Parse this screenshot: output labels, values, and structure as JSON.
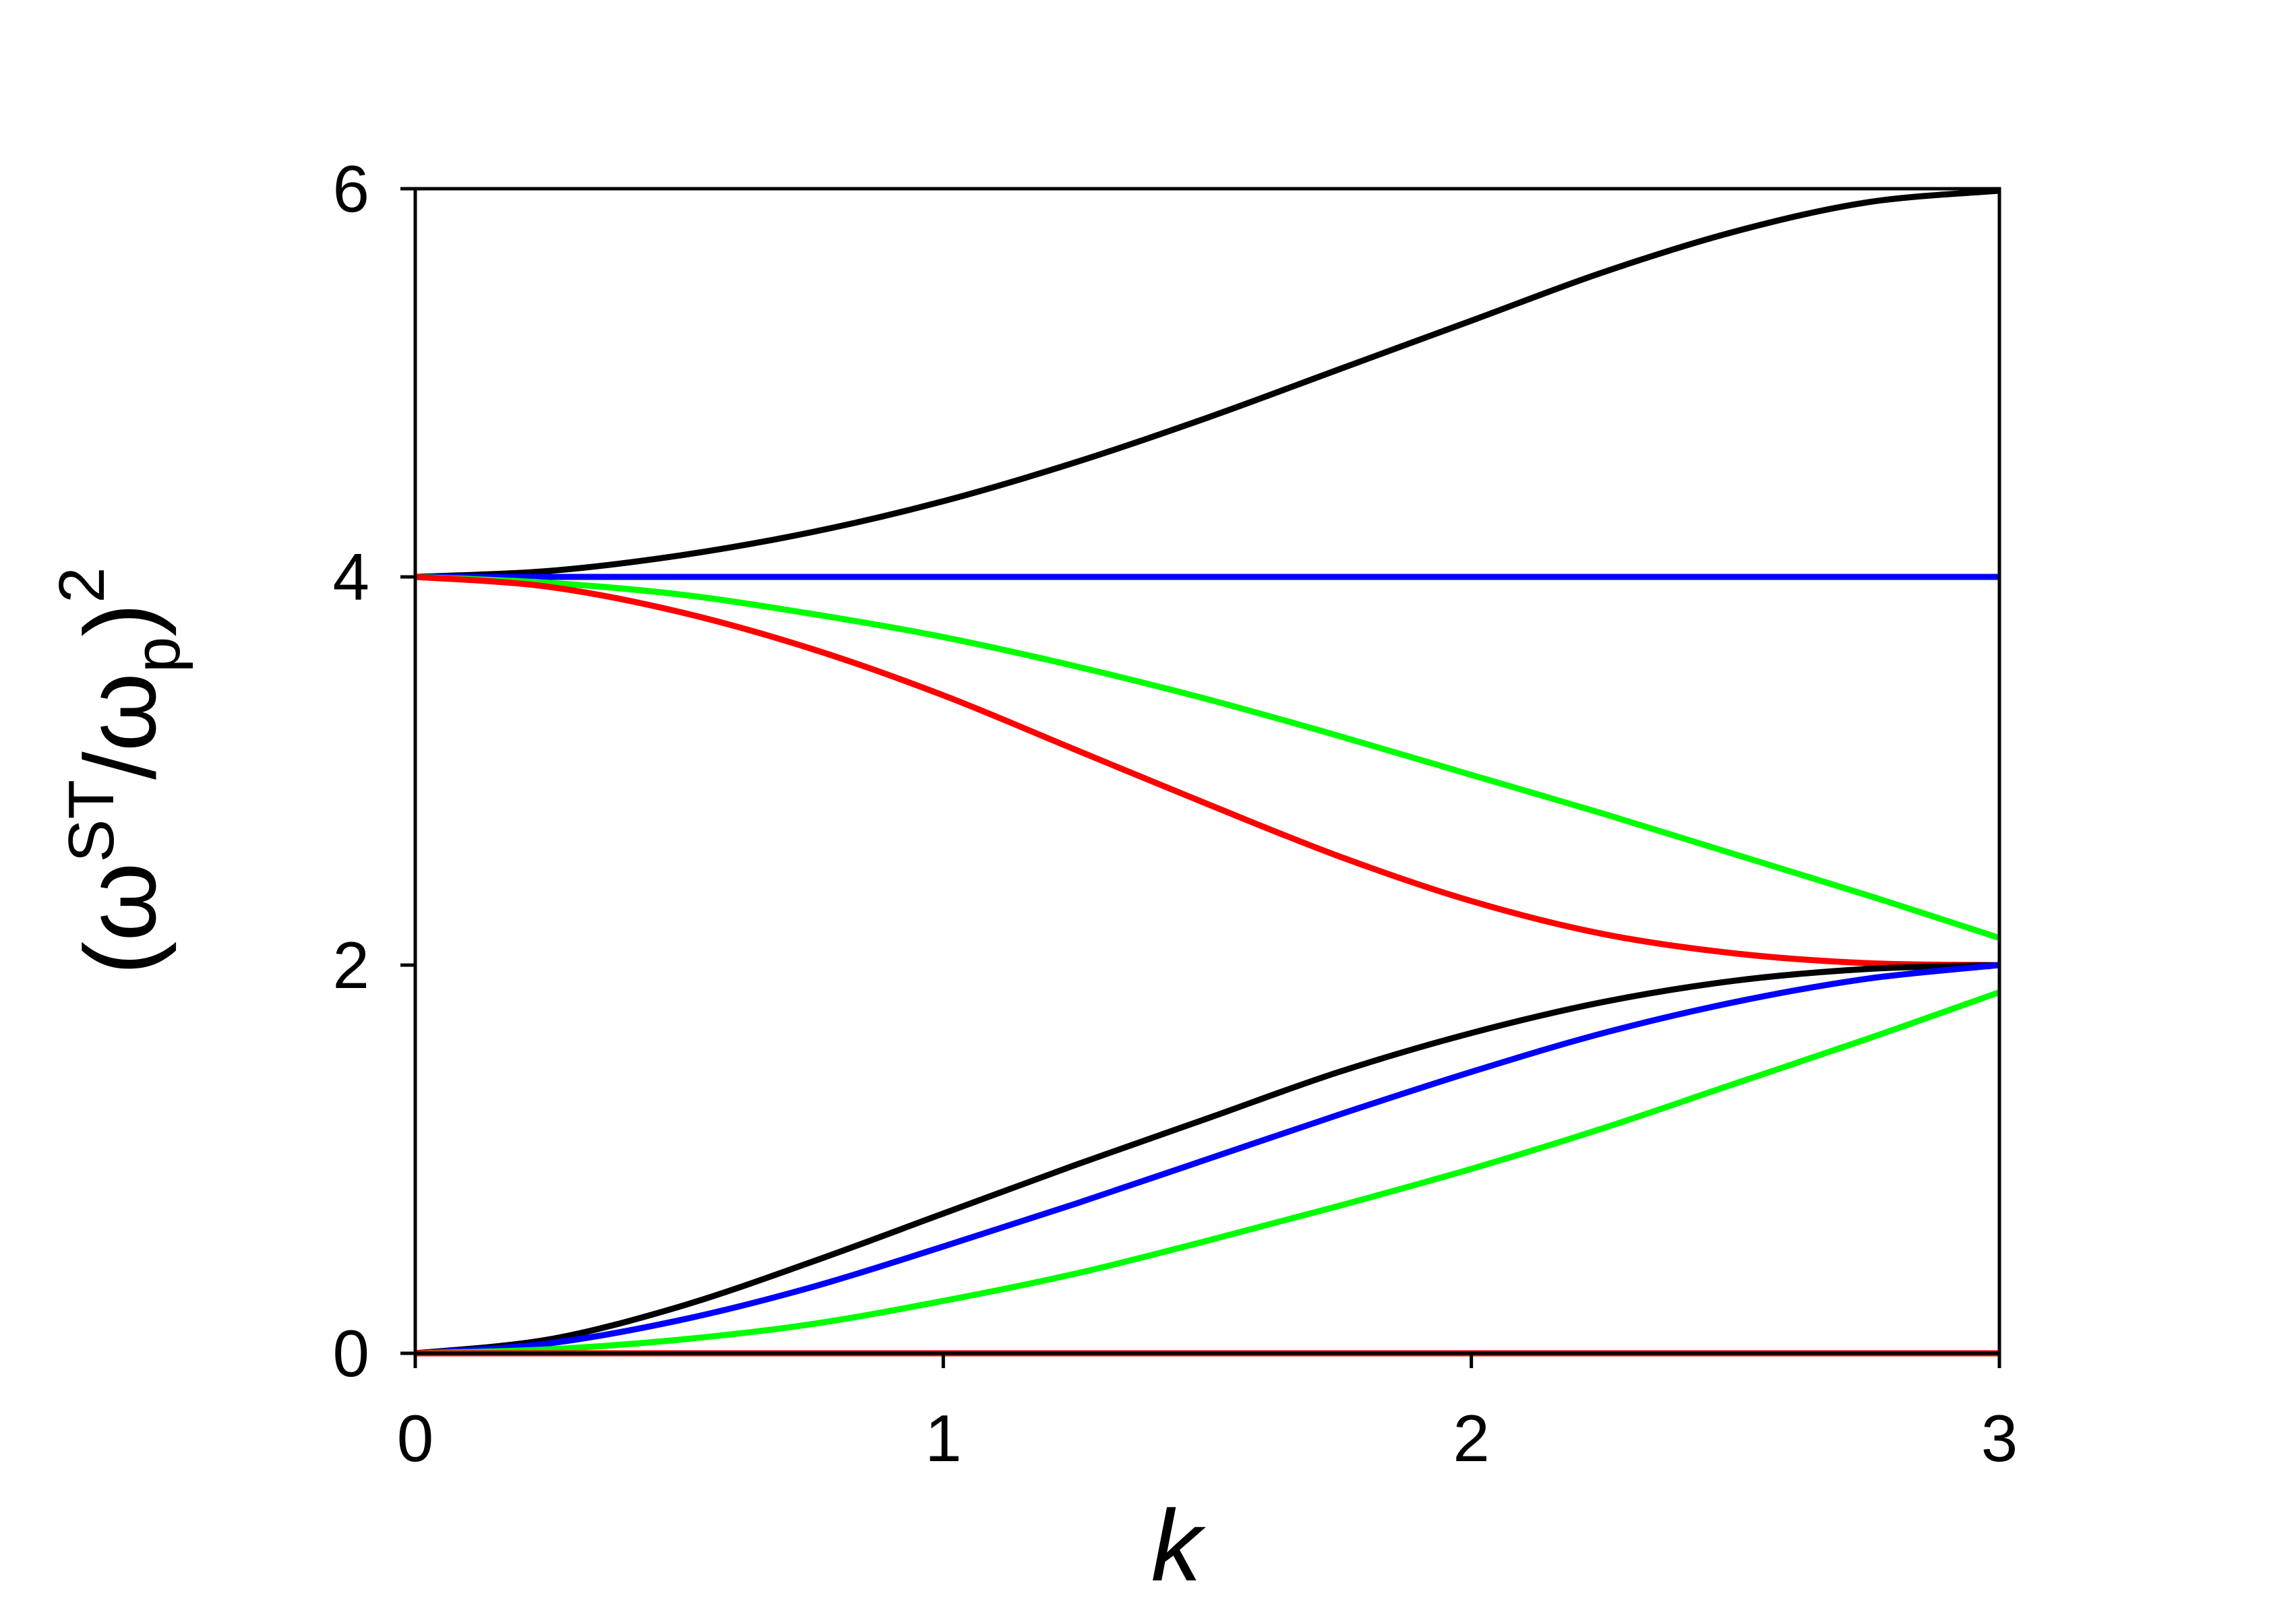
{
  "chart_data": {
    "type": "line",
    "xlabel": "k",
    "ylabel": {
      "open": "(",
      "omega": "ω",
      "sup": "ST",
      "slash": "/",
      "omega_p": "ω",
      "sub": "p",
      "close": ")",
      "power": "2"
    },
    "xlim": [
      0,
      3
    ],
    "ylim": [
      0,
      6
    ],
    "xticks": [
      0,
      1,
      2,
      3
    ],
    "xtick_labels": [
      "0",
      "1",
      "2",
      "3"
    ],
    "yticks": [
      0,
      2,
      4,
      6
    ],
    "ytick_labels": [
      "0",
      "2",
      "4",
      "6"
    ],
    "grid": false,
    "legend": "none",
    "x": [
      0,
      0.25,
      0.5,
      0.75,
      1.0,
      1.25,
      1.5,
      1.75,
      2.0,
      2.25,
      2.5,
      2.75,
      3.0
    ],
    "series": [
      {
        "color": "#000000",
        "values": [
          4.0,
          4.03,
          4.11,
          4.23,
          4.39,
          4.59,
          4.82,
          5.07,
          5.32,
          5.57,
          5.78,
          5.93,
          5.99
        ]
      },
      {
        "color": "#0000ff",
        "values": [
          4.0,
          4.0,
          4.0,
          4.0,
          4.0,
          4.0,
          4.0,
          4.0,
          4.0,
          4.0,
          4.0,
          4.0,
          4.0
        ]
      },
      {
        "color": "#00ff00",
        "values": [
          4.0,
          3.97,
          3.91,
          3.81,
          3.69,
          3.54,
          3.37,
          3.18,
          2.98,
          2.78,
          2.57,
          2.36,
          2.14
        ]
      },
      {
        "color": "#ff0000",
        "values": [
          4.0,
          3.95,
          3.82,
          3.63,
          3.39,
          3.11,
          2.83,
          2.56,
          2.33,
          2.16,
          2.06,
          2.01,
          2.0
        ]
      },
      {
        "color": "#000000",
        "values": [
          0.0,
          0.07,
          0.24,
          0.47,
          0.72,
          0.97,
          1.21,
          1.45,
          1.65,
          1.81,
          1.92,
          1.98,
          2.0
        ]
      },
      {
        "color": "#0000ff",
        "values": [
          0.0,
          0.05,
          0.17,
          0.34,
          0.55,
          0.77,
          1.0,
          1.23,
          1.45,
          1.65,
          1.81,
          1.93,
          2.0
        ]
      },
      {
        "color": "#00ff00",
        "values": [
          0.0,
          0.02,
          0.07,
          0.15,
          0.27,
          0.41,
          0.58,
          0.76,
          0.95,
          1.16,
          1.39,
          1.62,
          1.86
        ]
      },
      {
        "color": "#ff0000",
        "values": [
          0.0,
          0.0,
          0.0,
          0.0,
          0.0,
          0.0,
          0.0,
          0.0,
          0.0,
          0.0,
          0.0,
          0.0,
          0.0
        ]
      }
    ]
  }
}
